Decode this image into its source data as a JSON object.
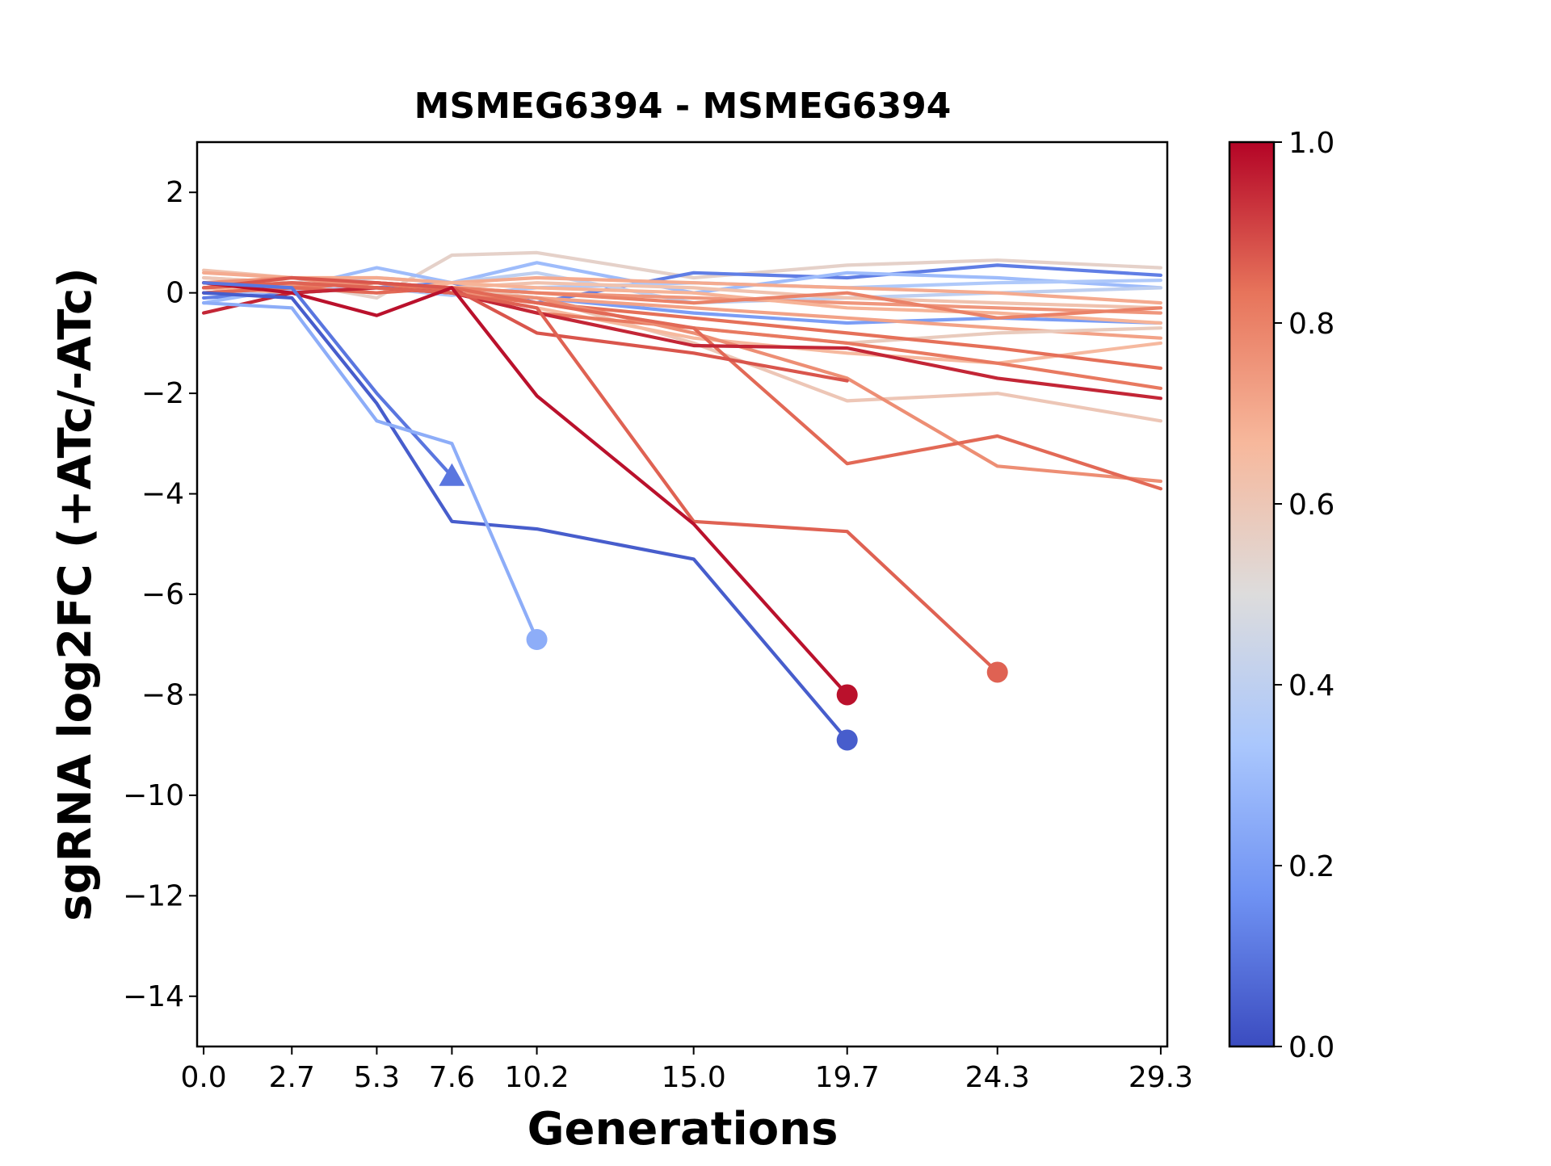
{
  "chart_data": {
    "type": "line",
    "title": "MSMEG6394 - MSMEG6394",
    "xlabel": "Generations",
    "ylabel": "sgRNA log2FC (+ATc/-ATc)",
    "xlim": [
      -0.2,
      29.5
    ],
    "ylim": [
      -15,
      3
    ],
    "x_ticks": [
      0.0,
      2.7,
      5.3,
      7.6,
      10.2,
      15.0,
      19.7,
      24.3,
      29.3
    ],
    "x_tick_labels": [
      "0.0",
      "2.7",
      "5.3",
      "7.6",
      "10.2",
      "15.0",
      "19.7",
      "24.3",
      "29.3"
    ],
    "y_ticks": [
      2,
      0,
      -2,
      -4,
      -6,
      -8,
      -10,
      -12,
      -14
    ],
    "y_tick_labels": [
      "2",
      "0",
      "−2",
      "−4",
      "−6",
      "−8",
      "−10",
      "−12",
      "−14"
    ],
    "grid": false,
    "colormap": "coolwarm",
    "colormap_stops": [
      "#3b4cc0",
      "#6f92f3",
      "#aac7fd",
      "#dddcdc",
      "#f7b89c",
      "#e7745b",
      "#b40426"
    ],
    "colorbar": {
      "range": [
        0.0,
        1.0
      ],
      "ticks": [
        0.0,
        0.2,
        0.4,
        0.6,
        0.8,
        1.0
      ],
      "tick_labels": [
        "0.0",
        "0.2",
        "0.4",
        "0.6",
        "0.8",
        "1.0"
      ]
    },
    "series": [
      {
        "score": 0.55,
        "x": [
          0.0,
          2.7,
          5.3,
          7.6,
          10.2,
          15.0,
          19.7,
          24.3,
          29.3
        ],
        "y": [
          0.3,
          0.2,
          -0.1,
          0.75,
          0.8,
          0.3,
          0.55,
          0.65,
          0.5
        ]
      },
      {
        "score": 0.12,
        "x": [
          0.0,
          2.7,
          5.3,
          7.6,
          10.2,
          15.0,
          19.7,
          24.3,
          29.3
        ],
        "y": [
          -0.1,
          0.0,
          0.1,
          0.2,
          -0.2,
          0.4,
          0.3,
          0.55,
          0.35
        ]
      },
      {
        "score": 0.3,
        "x": [
          0.0,
          2.7,
          5.3,
          7.6,
          10.2,
          15.0,
          19.7,
          24.3,
          29.3
        ],
        "y": [
          -0.2,
          0.1,
          0.5,
          0.2,
          0.6,
          0.0,
          0.4,
          0.3,
          0.1
        ]
      },
      {
        "score": 0.4,
        "x": [
          0.0,
          2.7,
          5.3,
          7.6,
          10.2,
          15.0,
          19.7,
          24.3,
          29.3
        ],
        "y": [
          0.1,
          0.2,
          0.3,
          0.2,
          0.4,
          -0.2,
          -0.1,
          0.0,
          0.1
        ]
      },
      {
        "score": 0.2,
        "x": [
          0.0,
          2.7,
          5.3,
          7.6,
          10.2,
          15.0,
          19.7,
          24.3,
          29.3
        ],
        "y": [
          0.2,
          0.1,
          0.2,
          0.0,
          -0.1,
          -0.4,
          -0.6,
          -0.5,
          -0.6
        ]
      },
      {
        "score": 0.35,
        "x": [
          0.0,
          2.7,
          5.3,
          7.6,
          10.2,
          15.0,
          19.7,
          24.3,
          29.3
        ],
        "y": [
          0.0,
          0.05,
          0.1,
          -0.05,
          0.1,
          0.2,
          0.1,
          0.2,
          0.25
        ]
      },
      {
        "score": 0.62,
        "x": [
          0.0,
          2.7,
          5.3,
          7.6,
          10.2,
          15.0,
          19.7,
          24.3,
          29.3
        ],
        "y": [
          0.45,
          0.3,
          0.2,
          0.1,
          0.2,
          0.1,
          -0.1,
          -0.2,
          -0.3
        ]
      },
      {
        "score": 0.7,
        "x": [
          0.0,
          2.7,
          5.3,
          7.6,
          10.2,
          15.0,
          19.7,
          24.3,
          29.3
        ],
        "y": [
          0.4,
          0.3,
          0.3,
          0.2,
          0.3,
          0.2,
          0.1,
          0.0,
          -0.2
        ]
      },
      {
        "score": 0.75,
        "x": [
          0.0,
          2.7,
          5.3,
          7.6,
          10.2,
          15.0,
          19.7,
          24.3,
          29.3
        ],
        "y": [
          0.2,
          0.15,
          0.2,
          0.1,
          0.0,
          -0.1,
          -0.2,
          -0.3,
          -0.4
        ]
      },
      {
        "score": 0.68,
        "x": [
          0.0,
          2.7,
          5.3,
          7.6,
          10.2,
          15.0,
          19.7,
          24.3,
          29.3
        ],
        "y": [
          0.0,
          0.1,
          0.0,
          0.2,
          0.1,
          0.0,
          -0.3,
          -0.4,
          -0.6
        ]
      },
      {
        "score": 0.72,
        "x": [
          0.0,
          2.7,
          5.3,
          7.6,
          10.2,
          15.0,
          19.7,
          24.3,
          29.3
        ],
        "y": [
          0.1,
          0.2,
          0.1,
          0.0,
          -0.1,
          -0.3,
          -0.5,
          -0.7,
          -0.9
        ]
      },
      {
        "score": 0.58,
        "x": [
          0.0,
          2.7,
          5.3,
          7.6,
          10.2,
          15.0,
          19.7,
          24.3,
          29.3
        ],
        "y": [
          0.2,
          0.1,
          0.0,
          0.1,
          -0.2,
          -0.7,
          -1.0,
          -0.8,
          -0.7
        ]
      },
      {
        "score": 0.6,
        "x": [
          0.0,
          2.7,
          5.3,
          7.6,
          10.2,
          15.0,
          19.7,
          24.3,
          29.3
        ],
        "y": [
          0.3,
          0.2,
          0.2,
          0.1,
          -0.1,
          -1.0,
          -2.15,
          -2.0,
          -2.55
        ]
      },
      {
        "score": 0.66,
        "x": [
          0.0,
          2.7,
          5.3,
          7.6,
          10.2,
          15.0,
          19.7,
          24.3,
          29.3
        ],
        "y": [
          0.1,
          0.0,
          0.1,
          0.0,
          -0.3,
          -0.9,
          -1.2,
          -1.4,
          -1.0
        ]
      },
      {
        "score": 0.8,
        "x": [
          0.0,
          2.7,
          5.3,
          7.6,
          10.2,
          15.0,
          19.7,
          24.3,
          29.3
        ],
        "y": [
          0.2,
          0.1,
          0.2,
          0.1,
          0.0,
          -0.2,
          0.0,
          -0.5,
          -0.3
        ]
      },
      {
        "score": 0.84,
        "x": [
          0.0,
          2.7,
          5.3,
          7.6,
          10.2,
          15.0,
          19.7,
          24.3,
          29.3
        ],
        "y": [
          0.1,
          0.2,
          0.1,
          0.0,
          -0.2,
          -0.5,
          -0.8,
          -1.1,
          -1.5
        ]
      },
      {
        "score": 0.82,
        "x": [
          0.0,
          2.7,
          5.3,
          7.6,
          10.2,
          15.0,
          19.7,
          24.3,
          29.3
        ],
        "y": [
          0.0,
          0.1,
          0.2,
          0.0,
          -0.4,
          -0.7,
          -1.0,
          -1.4,
          -1.9
        ]
      },
      {
        "score": 0.77,
        "x": [
          0.0,
          2.7,
          5.3,
          7.6,
          10.2,
          15.0,
          19.7,
          24.3,
          29.3
        ],
        "y": [
          0.2,
          0.3,
          0.1,
          0.0,
          -0.1,
          -0.8,
          -1.7,
          -3.45,
          -3.75
        ]
      },
      {
        "score": 0.85,
        "x": [
          0.0,
          2.7,
          5.3,
          7.6,
          10.2,
          15.0,
          19.7,
          24.3,
          29.3
        ],
        "y": [
          0.0,
          0.1,
          0.0,
          0.1,
          -0.2,
          -0.7,
          -3.4,
          -2.85,
          -3.9
        ]
      },
      {
        "score": 0.95,
        "x": [
          0.0,
          2.7,
          5.3,
          7.6,
          10.2,
          15.0,
          19.7,
          24.3,
          29.3
        ],
        "y": [
          -0.4,
          0.0,
          0.1,
          0.0,
          -0.4,
          -1.05,
          -1.1,
          -1.7,
          -2.1
        ]
      },
      {
        "score": 0.88,
        "x": [
          0.0,
          2.7,
          5.3,
          7.6,
          10.2,
          15.0,
          19.7
        ],
        "y": [
          0.1,
          0.3,
          0.2,
          0.1,
          -0.8,
          -1.2,
          -1.75
        ]
      },
      {
        "score": 0.86,
        "x": [
          0.0,
          2.7,
          5.3,
          7.6,
          10.2,
          15.0,
          19.7,
          24.3
        ],
        "y": [
          0.1,
          0.2,
          0.1,
          0.0,
          -0.3,
          -4.55,
          -4.75,
          -7.55
        ],
        "end_marker": "circle"
      },
      {
        "score": 0.98,
        "x": [
          0.0,
          2.7,
          5.3,
          7.6,
          10.2,
          15.0,
          19.7
        ],
        "y": [
          0.2,
          0.0,
          -0.45,
          0.1,
          -2.05,
          -4.6,
          -8.0
        ],
        "end_marker": "circle"
      },
      {
        "score": 0.04,
        "x": [
          0.0,
          2.7,
          5.3,
          7.6,
          10.2,
          15.0,
          19.7
        ],
        "y": [
          0.0,
          -0.1,
          -2.2,
          -4.55,
          -4.7,
          -5.3,
          -8.9
        ],
        "end_marker": "circle"
      },
      {
        "score": 0.1,
        "x": [
          0.0,
          2.7,
          5.3,
          7.6
        ],
        "y": [
          0.2,
          0.1,
          -2.0,
          -3.65
        ],
        "end_marker": "triangle"
      },
      {
        "score": 0.25,
        "x": [
          0.0,
          2.7,
          5.3,
          7.6,
          10.2
        ],
        "y": [
          -0.2,
          -0.3,
          -2.55,
          -3.0,
          -6.9
        ],
        "end_marker": "circle"
      }
    ]
  }
}
